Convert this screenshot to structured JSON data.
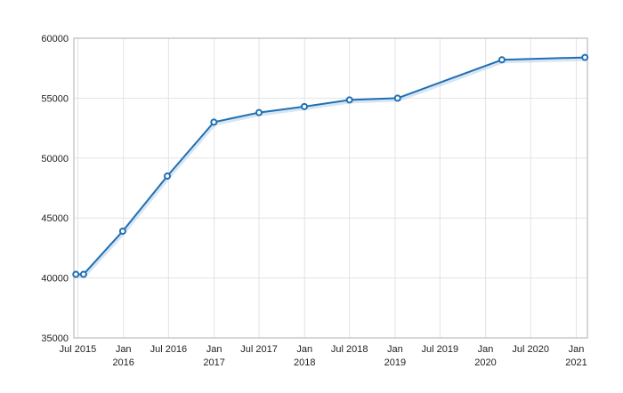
{
  "colors": {
    "series": "#1f6fb4",
    "grid": "#e3e3e3",
    "frame": "#c9c9c9"
  },
  "chart_data": {
    "type": "line",
    "title": "",
    "xlabel": "",
    "ylabel": "",
    "ylim": [
      35000,
      60000
    ],
    "xlim": [
      "2015-06-15",
      "2021-02-15"
    ],
    "grid": true,
    "legend": "none",
    "y_ticks": [
      35000,
      40000,
      45000,
      50000,
      55000,
      60000
    ],
    "y_tick_labels": [
      "35000",
      "40000",
      "45000",
      "50000",
      "55000",
      "60000"
    ],
    "x_ticks": [
      {
        "date": "2015-07-01",
        "label": [
          "Jul 2015"
        ]
      },
      {
        "date": "2016-01-01",
        "label": [
          "Jan",
          "2016"
        ]
      },
      {
        "date": "2016-07-01",
        "label": [
          "Jul 2016"
        ]
      },
      {
        "date": "2017-01-01",
        "label": [
          "Jan",
          "2017"
        ]
      },
      {
        "date": "2017-07-01",
        "label": [
          "Jul 2017"
        ]
      },
      {
        "date": "2018-01-01",
        "label": [
          "Jan",
          "2018"
        ]
      },
      {
        "date": "2018-07-01",
        "label": [
          "Jul 2018"
        ]
      },
      {
        "date": "2019-01-01",
        "label": [
          "Jan",
          "2019"
        ]
      },
      {
        "date": "2019-07-01",
        "label": [
          "Jul 2019"
        ]
      },
      {
        "date": "2020-01-01",
        "label": [
          "Jan",
          "2020"
        ]
      },
      {
        "date": "2020-07-01",
        "label": [
          "Jul 2020"
        ]
      },
      {
        "date": "2021-01-01",
        "label": [
          "Jan",
          "2021"
        ]
      }
    ],
    "series": [
      {
        "points": [
          {
            "x": "2015-06-23",
            "y": 40300
          },
          {
            "x": "2015-07-24",
            "y": 40300
          },
          {
            "x": "2015-12-29",
            "y": 43900
          },
          {
            "x": "2016-06-26",
            "y": 48500
          },
          {
            "x": "2016-12-31",
            "y": 53000
          },
          {
            "x": "2017-07-01",
            "y": 53800
          },
          {
            "x": "2017-12-31",
            "y": 54300
          },
          {
            "x": "2018-07-01",
            "y": 54850
          },
          {
            "x": "2019-01-11",
            "y": 55000
          },
          {
            "x": "2020-03-07",
            "y": 58200
          },
          {
            "x": "2021-02-05",
            "y": 58400
          }
        ]
      }
    ]
  }
}
